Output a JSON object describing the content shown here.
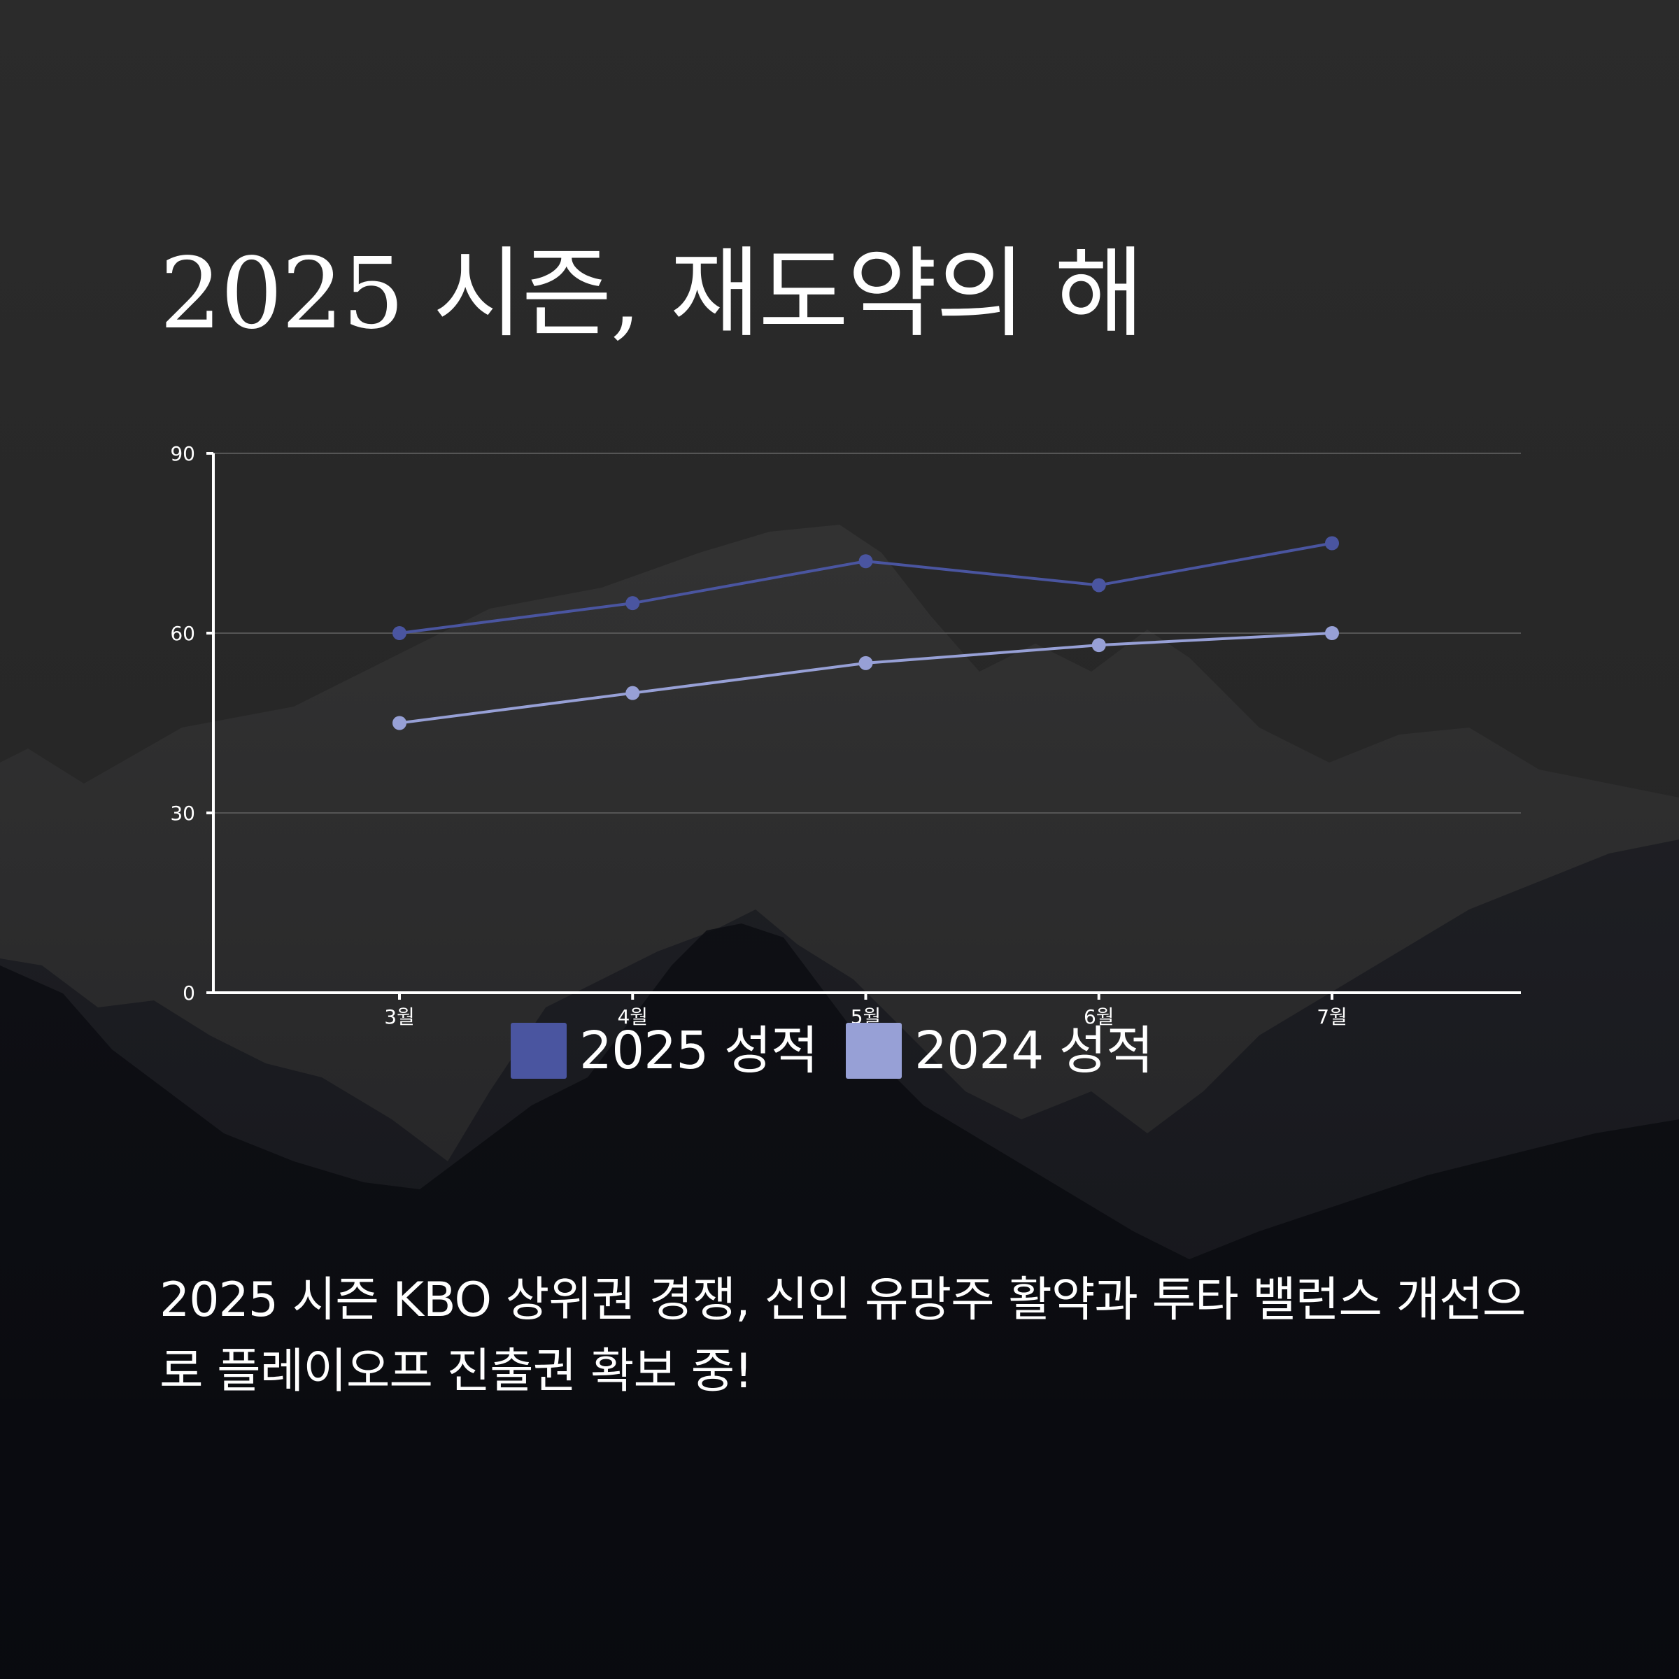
{
  "title": "2025 시즌, 재도약의 해",
  "caption": "2025 시즌 KBO 상위권 경쟁, 신인 유망주 활약과 투타 밸런스 개선으로 플레이오프 진출권 확보 중!",
  "colors": {
    "background_top": "#2a2a2a",
    "background_bottom": "#0b0c12",
    "series_2025": "#4a55a0",
    "series_2024": "#97a0d6",
    "grid": "#555555",
    "axis": "#ffffff"
  },
  "chart_data": {
    "type": "line",
    "categories": [
      "3월",
      "4월",
      "5월",
      "6월",
      "7월"
    ],
    "series": [
      {
        "name": "2025 성적",
        "values": [
          60,
          65,
          72,
          68,
          75
        ]
      },
      {
        "name": "2024 성적",
        "values": [
          45,
          50,
          55,
          58,
          60
        ]
      }
    ],
    "ylim": [
      0,
      90
    ],
    "yticks": [
      0,
      30,
      60,
      90
    ],
    "grid": true,
    "legend_position": "bottom-center"
  }
}
